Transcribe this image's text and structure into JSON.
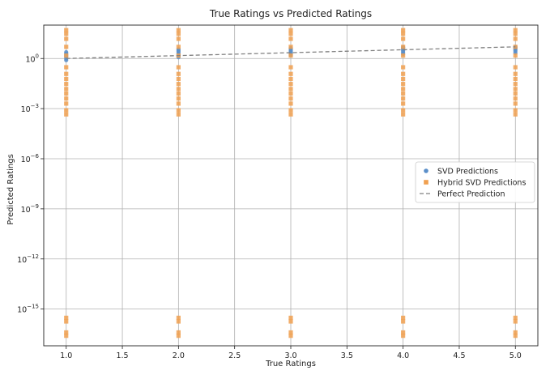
{
  "chart_data": {
    "type": "scatter",
    "title": "True Ratings vs Predicted Ratings",
    "xlabel": "True Ratings",
    "ylabel": "Predicted Ratings",
    "xlim": [
      0.8,
      5.2
    ],
    "ylim_log10": [
      -17.2,
      2.0
    ],
    "y_scale": "log",
    "grid": true,
    "legend_position": "center-right",
    "x_ticks": [
      1.0,
      1.5,
      2.0,
      2.5,
      3.0,
      3.5,
      4.0,
      4.5,
      5.0
    ],
    "x_tick_labels": [
      "1.0",
      "1.5",
      "2.0",
      "2.5",
      "3.0",
      "3.5",
      "4.0",
      "4.5",
      "5.0"
    ],
    "y_ticks_log10": [
      0,
      -3,
      -6,
      -9,
      -12,
      -15
    ],
    "y_tick_bases": [
      "10",
      "10",
      "10",
      "10",
      "10",
      "10"
    ],
    "y_tick_exponents": [
      "0",
      "−3",
      "−6",
      "−9",
      "−12",
      "−15"
    ],
    "series": [
      {
        "name": "SVD Predictions",
        "color": "#5b8fc9",
        "marker": "circle",
        "x": [
          1,
          1,
          1,
          1,
          1,
          1,
          2,
          2,
          2,
          2,
          2,
          2,
          3,
          3,
          3,
          3,
          3,
          3,
          4,
          4,
          4,
          4,
          4,
          4,
          5,
          5,
          5,
          5,
          5,
          5
        ],
        "y": [
          0.8,
          1.0,
          1.3,
          1.6,
          2.0,
          2.4,
          1.2,
          1.6,
          2.0,
          2.5,
          3.0,
          3.6,
          1.6,
          2.0,
          2.5,
          3.0,
          3.6,
          4.2,
          1.9,
          2.4,
          3.0,
          3.6,
          4.2,
          4.8,
          2.2,
          2.8,
          3.4,
          4.0,
          4.6,
          5.0
        ]
      },
      {
        "name": "Hybrid SVD Predictions",
        "color": "#f0a050",
        "marker": "square",
        "x": [
          1,
          1,
          1,
          1,
          1,
          1,
          1,
          1,
          1,
          1,
          1,
          1,
          1,
          1,
          1,
          1,
          1,
          1,
          1,
          2,
          2,
          2,
          2,
          2,
          2,
          2,
          2,
          2,
          2,
          2,
          2,
          2,
          2,
          2,
          2,
          2,
          2,
          2,
          3,
          3,
          3,
          3,
          3,
          3,
          3,
          3,
          3,
          3,
          3,
          3,
          3,
          3,
          3,
          3,
          3,
          3,
          3,
          4,
          4,
          4,
          4,
          4,
          4,
          4,
          4,
          4,
          4,
          4,
          4,
          4,
          4,
          4,
          4,
          4,
          4,
          4,
          5,
          5,
          5,
          5,
          5,
          5,
          5,
          5,
          5,
          5,
          5,
          5,
          5,
          5,
          5,
          5,
          5,
          5,
          5
        ],
        "y": [
          50,
          30,
          15,
          5,
          1.5,
          0.3,
          0.12,
          0.06,
          0.03,
          0.015,
          0.008,
          0.004,
          0.002,
          0.0008,
          0.00045,
          3e-16,
          1.8e-16,
          4e-17,
          2.5e-17,
          50,
          30,
          15,
          5,
          1.5,
          0.3,
          0.12,
          0.06,
          0.03,
          0.015,
          0.008,
          0.004,
          0.002,
          0.0008,
          0.00045,
          3e-16,
          1.8e-16,
          4e-17,
          2.5e-17,
          50,
          30,
          15,
          5,
          1.5,
          0.3,
          0.12,
          0.06,
          0.03,
          0.015,
          0.008,
          0.004,
          0.002,
          0.0008,
          0.00045,
          3e-16,
          1.8e-16,
          4e-17,
          2.5e-17,
          50,
          30,
          15,
          5,
          1.5,
          0.3,
          0.12,
          0.06,
          0.03,
          0.015,
          0.008,
          0.004,
          0.002,
          0.0008,
          0.00045,
          3e-16,
          1.8e-16,
          4e-17,
          2.5e-17,
          50,
          30,
          15,
          5,
          1.5,
          0.3,
          0.12,
          0.06,
          0.03,
          0.015,
          0.008,
          0.004,
          0.002,
          0.0008,
          0.00045,
          3e-16,
          1.8e-16,
          4e-17,
          2.5e-17
        ]
      },
      {
        "name": "Perfect Prediction",
        "color": "#808080",
        "marker": "dashed-line",
        "x": [
          1,
          5
        ],
        "y": [
          1,
          5
        ]
      }
    ]
  }
}
